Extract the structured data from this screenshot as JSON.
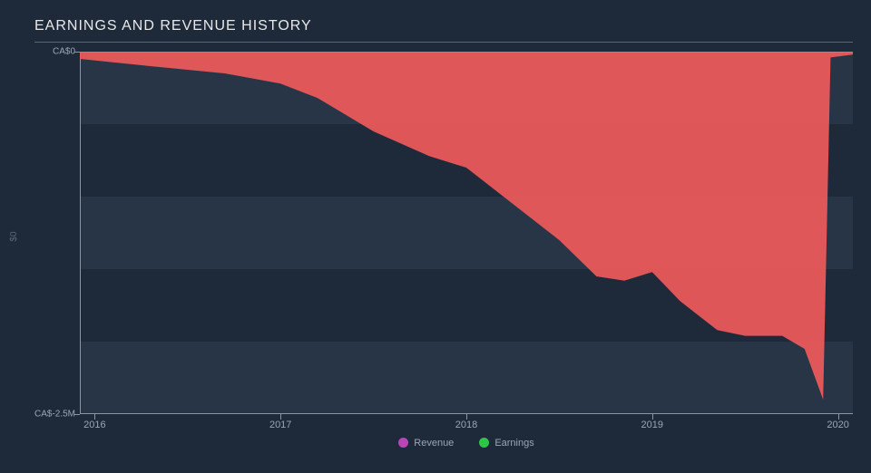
{
  "chart": {
    "type": "area",
    "title": "EARNINGS AND REVENUE HISTORY",
    "title_fontsize": 16,
    "title_color": "#e8e8e8",
    "background_color": "#1e2a3a",
    "grid_band_color": "#283546",
    "axis_line_color": "#8a95a5",
    "tick_label_color": "#9aa5b5",
    "tick_fontsize": 10,
    "xlim": [
      2015.92,
      2020.08
    ],
    "ylim": [
      -2.5,
      0
    ],
    "y_ticks": [
      {
        "value": 0,
        "label": "CA$0"
      },
      {
        "value": -2.5,
        "label": "CA$-2.5M"
      }
    ],
    "x_ticks": [
      {
        "value": 2016,
        "label": "2016"
      },
      {
        "value": 2017,
        "label": "2017"
      },
      {
        "value": 2018,
        "label": "2018"
      },
      {
        "value": 2019,
        "label": "2019"
      },
      {
        "value": 2020,
        "label": "2020"
      }
    ],
    "grid_bands_y": [
      {
        "from": 0,
        "to": -0.5
      },
      {
        "from": -1.0,
        "to": -1.5
      },
      {
        "from": -2.0,
        "to": -2.5
      }
    ],
    "series": [
      {
        "name": "Earnings",
        "legend_color": "#2fc44a",
        "fill_color": "#ef5a5a",
        "fill_opacity": 0.92,
        "baseline": 0,
        "points": [
          {
            "x": 2015.92,
            "y": -0.05
          },
          {
            "x": 2016.3,
            "y": -0.1
          },
          {
            "x": 2016.7,
            "y": -0.15
          },
          {
            "x": 2017.0,
            "y": -0.22
          },
          {
            "x": 2017.2,
            "y": -0.32
          },
          {
            "x": 2017.5,
            "y": -0.55
          },
          {
            "x": 2017.8,
            "y": -0.72
          },
          {
            "x": 2018.0,
            "y": -0.8
          },
          {
            "x": 2018.2,
            "y": -1.0
          },
          {
            "x": 2018.5,
            "y": -1.3
          },
          {
            "x": 2018.7,
            "y": -1.55
          },
          {
            "x": 2018.85,
            "y": -1.58
          },
          {
            "x": 2019.0,
            "y": -1.52
          },
          {
            "x": 2019.15,
            "y": -1.72
          },
          {
            "x": 2019.35,
            "y": -1.92
          },
          {
            "x": 2019.5,
            "y": -1.96
          },
          {
            "x": 2019.7,
            "y": -1.96
          },
          {
            "x": 2019.82,
            "y": -2.05
          },
          {
            "x": 2019.92,
            "y": -2.4
          },
          {
            "x": 2019.96,
            "y": -0.04
          },
          {
            "x": 2020.08,
            "y": -0.02
          }
        ]
      },
      {
        "name": "Revenue",
        "legend_color": "#b946b9",
        "fill_color": "#b946b9",
        "fill_opacity": 0,
        "baseline": 0,
        "points": []
      }
    ],
    "legend": {
      "items": [
        {
          "label": "Revenue",
          "color": "#b946b9"
        },
        {
          "label": "Earnings",
          "color": "#2fc44a"
        }
      ],
      "fontsize": 11,
      "color": "#9aa5b5"
    }
  }
}
